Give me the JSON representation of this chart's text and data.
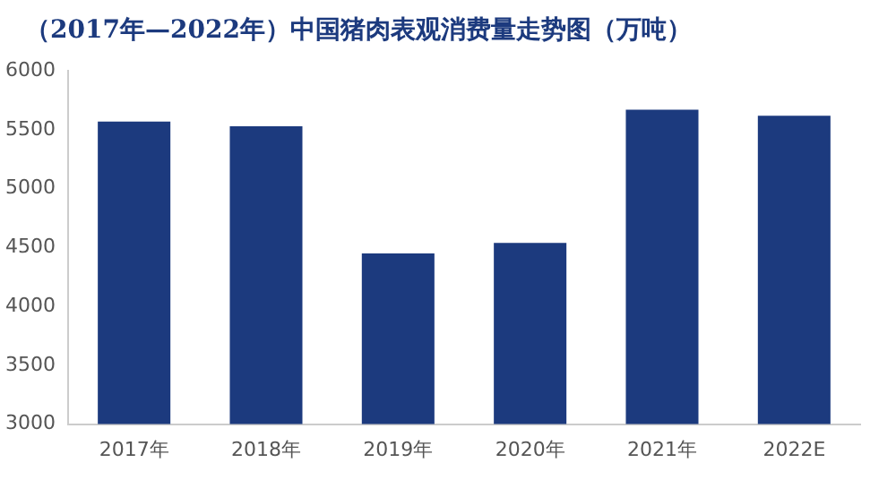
{
  "chart_data": {
    "type": "bar",
    "title": "（2017年—2022年）中国猪肉表观消费量走势图（万吨）",
    "categories": [
      "2017年",
      "2018年",
      "2019年",
      "2020年",
      "2021年",
      "2022E"
    ],
    "values": [
      5570,
      5530,
      4450,
      4540,
      5670,
      5620
    ],
    "color": "#1c3a7e",
    "ylim": [
      3000,
      6000
    ],
    "yticks": [
      3000,
      3500,
      4000,
      4500,
      5000,
      5500,
      6000
    ]
  }
}
